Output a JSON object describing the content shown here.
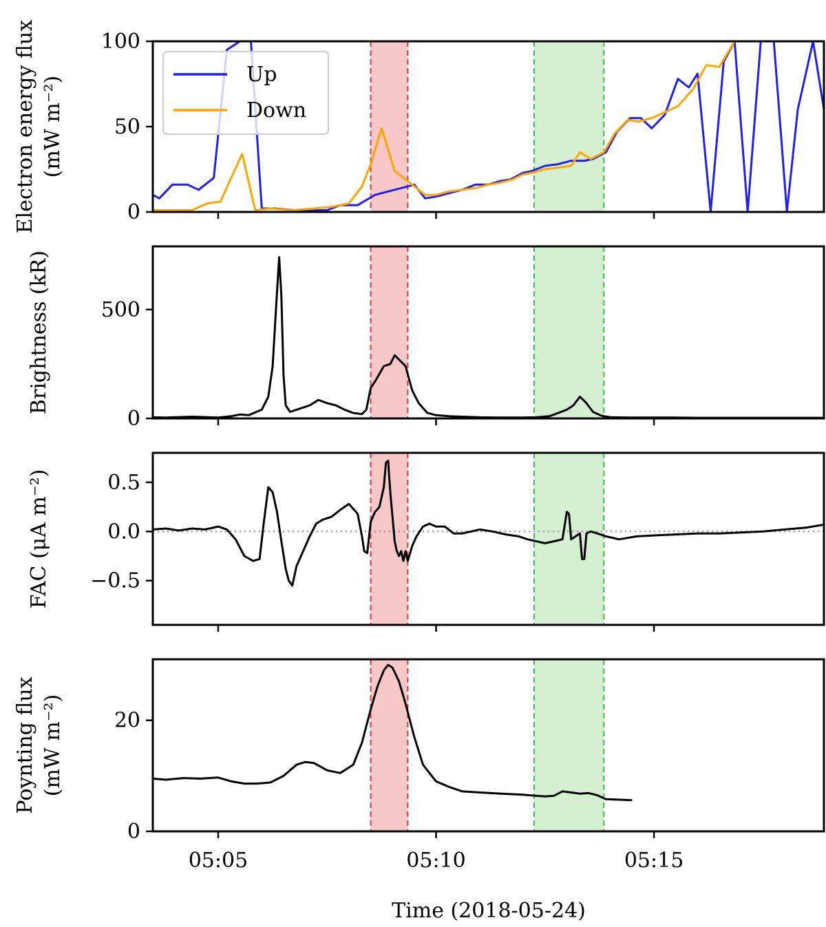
{
  "figure": {
    "xlabel": "Time (2018-05-24)",
    "x_ticks": [
      {
        "min": 305,
        "label": "05:05"
      },
      {
        "min": 310,
        "label": "05:10"
      },
      {
        "min": 315,
        "label": "05:15"
      }
    ],
    "x_range_min": [
      303.5,
      318.9
    ],
    "shaded": [
      {
        "name": "red-interval",
        "start_min": 308.5,
        "end_min": 309.35,
        "fill": "#f8c8c8",
        "line": "#e8353b"
      },
      {
        "name": "green-interval",
        "start_min": 312.25,
        "end_min": 313.85,
        "fill": "#d4f0d0",
        "line": "#3cb84a"
      }
    ]
  },
  "chart_data": [
    {
      "type": "line",
      "panel": "electron-energy-flux",
      "ylabel": [
        "Electron energy flux",
        "(mW m⁻²)"
      ],
      "ylim": [
        0,
        100
      ],
      "yticks": [
        0,
        50,
        100
      ],
      "legend": {
        "position": "top-left",
        "entries": [
          "Up",
          "Down"
        ]
      },
      "series": [
        {
          "name": "Up",
          "color": "#1f1ff0",
          "x": [
            303.5,
            303.65,
            303.95,
            304.3,
            304.55,
            304.9,
            305.2,
            305.5,
            305.75,
            306.0,
            306.3,
            306.75,
            307.2,
            307.5,
            307.8,
            308.2,
            308.6,
            308.9,
            309.2,
            309.5,
            309.75,
            310.0,
            310.3,
            310.6,
            310.9,
            311.2,
            311.45,
            311.7,
            312.0,
            312.2,
            312.5,
            312.8,
            313.1,
            313.4,
            313.6,
            313.9,
            314.15,
            314.45,
            314.7,
            314.95,
            315.25,
            315.55,
            315.8,
            316.0,
            316.3,
            316.6,
            316.85,
            317.15,
            317.45,
            317.75,
            318.05,
            318.3,
            318.65,
            318.9
          ],
          "y": [
            10,
            8,
            16,
            16,
            13,
            20,
            95,
            100,
            100,
            2,
            2,
            1,
            1,
            1,
            4,
            4,
            10,
            12,
            14,
            16,
            8,
            9,
            11,
            13,
            16,
            16,
            18,
            19,
            23,
            24,
            27,
            28,
            30,
            30,
            31,
            35,
            47,
            55,
            55,
            49,
            57,
            78,
            73,
            81,
            0,
            88,
            100,
            0,
            100,
            100,
            0,
            60,
            100,
            60
          ]
        },
        {
          "name": "Down",
          "color": "#ffa500",
          "x": [
            303.5,
            303.95,
            304.4,
            304.75,
            305.05,
            305.55,
            305.85,
            306.2,
            306.7,
            307.2,
            307.6,
            308.0,
            308.3,
            308.5,
            308.75,
            309.05,
            309.35,
            309.75,
            310.0,
            310.3,
            310.6,
            310.9,
            311.2,
            311.45,
            311.75,
            312.0,
            312.2,
            312.5,
            312.8,
            313.1,
            313.3,
            313.55,
            313.85,
            314.1,
            314.4,
            314.65,
            314.95,
            315.3,
            315.55,
            315.9,
            316.2,
            316.5,
            316.85
          ],
          "y": [
            1,
            1,
            1,
            5,
            6,
            34,
            1,
            2,
            1,
            2,
            3,
            5,
            15,
            28,
            49,
            24,
            18,
            10,
            10,
            12,
            13,
            14,
            16,
            17,
            19,
            22,
            23,
            25,
            26,
            27,
            35,
            31,
            35,
            46,
            54,
            53,
            55,
            59,
            62,
            72,
            86,
            85,
            100
          ]
        }
      ]
    },
    {
      "type": "line",
      "panel": "brightness",
      "ylabel": [
        "Brightness (kR)"
      ],
      "ylim": [
        0,
        790
      ],
      "yticks": [
        0,
        500
      ],
      "series": [
        {
          "name": "Brightness",
          "color": "#000000",
          "x": [
            303.5,
            303.8,
            304.1,
            304.4,
            304.7,
            305.0,
            305.3,
            305.5,
            305.7,
            306.0,
            306.15,
            306.25,
            306.35,
            306.4,
            306.45,
            306.5,
            306.55,
            306.65,
            306.8,
            306.95,
            307.1,
            307.3,
            307.5,
            307.7,
            307.9,
            308.1,
            308.3,
            308.4,
            308.5,
            308.6,
            308.8,
            308.95,
            309.05,
            309.15,
            309.3,
            309.45,
            309.6,
            309.8,
            310.0,
            310.3,
            310.6,
            311.0,
            311.5,
            312.0,
            312.3,
            312.6,
            312.8,
            313.0,
            313.15,
            313.3,
            313.45,
            313.6,
            313.8,
            314.0,
            314.5,
            315.0,
            315.5,
            316.0,
            316.5,
            317.0,
            318.0,
            318.9
          ],
          "y": [
            5,
            4,
            6,
            8,
            6,
            4,
            10,
            18,
            15,
            40,
            100,
            240,
            580,
            740,
            560,
            200,
            60,
            30,
            40,
            50,
            60,
            85,
            70,
            60,
            40,
            25,
            20,
            40,
            140,
            170,
            240,
            250,
            290,
            270,
            240,
            130,
            70,
            25,
            15,
            10,
            8,
            5,
            4,
            4,
            5,
            10,
            25,
            40,
            60,
            100,
            70,
            30,
            12,
            5,
            4,
            4,
            4,
            3,
            3,
            3,
            3,
            3
          ]
        }
      ]
    },
    {
      "type": "line",
      "panel": "fac",
      "ylabel": [
        "FAC (μA m⁻²)"
      ],
      "ylim": [
        -0.95,
        0.8
      ],
      "yticks": [
        -0.5,
        0.0,
        0.5
      ],
      "zero_line": true,
      "series": [
        {
          "name": "FAC",
          "color": "#000000",
          "x": [
            303.5,
            303.8,
            304.1,
            304.4,
            304.7,
            305.0,
            305.2,
            305.4,
            305.6,
            305.8,
            305.95,
            306.05,
            306.15,
            306.25,
            306.35,
            306.45,
            306.55,
            306.62,
            306.7,
            306.8,
            306.95,
            307.1,
            307.25,
            307.4,
            307.6,
            307.8,
            308.0,
            308.2,
            308.3,
            308.35,
            308.42,
            308.5,
            308.6,
            308.7,
            308.8,
            308.85,
            308.9,
            308.95,
            309.0,
            309.05,
            309.1,
            309.15,
            309.2,
            309.25,
            309.3,
            309.35,
            309.45,
            309.55,
            309.7,
            309.85,
            310.0,
            310.2,
            310.4,
            310.6,
            310.8,
            311.0,
            311.3,
            311.6,
            311.9,
            312.1,
            312.3,
            312.5,
            312.7,
            312.9,
            313.0,
            313.05,
            313.1,
            313.2,
            313.3,
            313.35,
            313.4,
            313.45,
            313.55,
            313.7,
            313.9,
            314.2,
            314.6,
            315.0,
            315.5,
            316.0,
            316.5,
            317.0,
            317.5,
            318.0,
            318.5,
            318.9
          ],
          "y": [
            0.02,
            0.03,
            0.01,
            0.03,
            0.02,
            0.05,
            0.02,
            -0.08,
            -0.25,
            -0.3,
            -0.28,
            0.1,
            0.45,
            0.4,
            0.2,
            -0.1,
            -0.38,
            -0.5,
            -0.55,
            -0.35,
            -0.2,
            -0.05,
            0.08,
            0.12,
            0.15,
            0.22,
            0.28,
            0.18,
            -0.05,
            -0.2,
            -0.22,
            0.1,
            0.2,
            0.25,
            0.45,
            0.7,
            0.72,
            0.4,
            0.15,
            -0.1,
            -0.2,
            -0.25,
            -0.2,
            -0.3,
            -0.2,
            -0.3,
            -0.15,
            -0.05,
            0.05,
            0.08,
            0.05,
            0.05,
            -0.02,
            -0.02,
            0.0,
            0.02,
            0.0,
            -0.03,
            -0.05,
            -0.08,
            -0.1,
            -0.12,
            -0.1,
            -0.08,
            0.2,
            0.18,
            -0.08,
            -0.05,
            -0.02,
            -0.28,
            -0.28,
            -0.02,
            0.0,
            -0.02,
            -0.05,
            -0.08,
            -0.05,
            -0.04,
            -0.03,
            -0.02,
            -0.02,
            -0.01,
            0.0,
            0.02,
            0.04,
            0.07
          ]
        }
      ]
    },
    {
      "type": "line",
      "panel": "poynting-flux",
      "ylabel": [
        "Poynting flux",
        "(mW m⁻²)"
      ],
      "ylim": [
        0,
        31
      ],
      "yticks": [
        0,
        20
      ],
      "series": [
        {
          "name": "Poynting flux",
          "color": "#000000",
          "x": [
            303.5,
            303.8,
            304.2,
            304.6,
            305.0,
            305.3,
            305.6,
            305.9,
            306.2,
            306.5,
            306.8,
            307.0,
            307.2,
            307.5,
            307.8,
            308.1,
            308.3,
            308.5,
            308.65,
            308.8,
            308.9,
            309.0,
            309.15,
            309.3,
            309.5,
            309.7,
            310.0,
            310.3,
            310.6,
            311.0,
            311.5,
            312.0,
            312.3,
            312.5,
            312.7,
            312.9,
            313.1,
            313.3,
            313.5,
            313.7,
            313.9,
            314.2,
            314.5
          ],
          "y": [
            9.5,
            9.3,
            9.6,
            9.5,
            9.7,
            9.0,
            8.6,
            8.6,
            8.8,
            10.0,
            12.0,
            12.5,
            12.3,
            11.0,
            10.5,
            12.0,
            16.0,
            22.0,
            26.0,
            29.0,
            30.0,
            29.5,
            27.0,
            23.0,
            17.0,
            12.0,
            9.0,
            8.0,
            7.2,
            7.0,
            6.8,
            6.6,
            6.4,
            6.3,
            6.4,
            7.2,
            7.0,
            6.8,
            6.9,
            6.5,
            5.8,
            5.7,
            5.6
          ]
        }
      ]
    }
  ]
}
